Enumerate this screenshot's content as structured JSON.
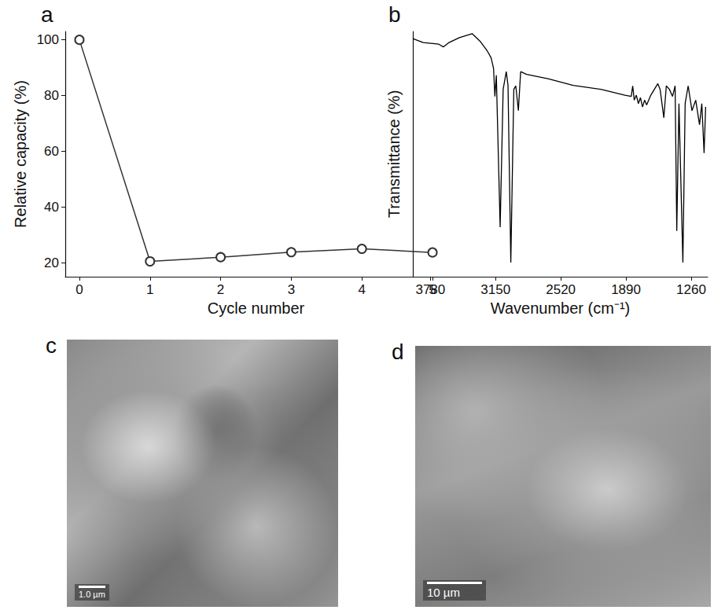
{
  "chart_data": [
    {
      "panel": "a",
      "type": "line",
      "x": [
        0,
        1,
        2,
        3,
        4,
        5
      ],
      "values": [
        100,
        20.5,
        22,
        23.8,
        25,
        23.7
      ],
      "xlim": [
        -0.2,
        5.2
      ],
      "xticks": [
        0,
        1,
        2,
        3,
        4,
        5
      ],
      "ylim": [
        15,
        103
      ],
      "yticks": [
        20,
        40,
        60,
        80,
        100
      ],
      "x_label": "Cycle number",
      "y_label": "Relative capacity (%)",
      "color": "#333333",
      "marker": "open_circle",
      "grid": false
    },
    {
      "panel": "b",
      "type": "line",
      "x": [
        3950,
        3850,
        3700,
        3655,
        3600,
        3500,
        3377,
        3300,
        3230,
        3194,
        3170,
        3157,
        3143,
        3106,
        3077,
        3047,
        3030,
        3003,
        2974,
        2955,
        2930,
        2908,
        2850,
        2644,
        2400,
        2132,
        1900,
        1839,
        1825,
        1810,
        1790,
        1770,
        1750,
        1730,
        1710,
        1690,
        1650,
        1582,
        1560,
        1524,
        1500,
        1470,
        1440,
        1415,
        1399,
        1378,
        1340,
        1318,
        1289,
        1252,
        1216,
        1179,
        1157,
        1135,
        1120
      ],
      "values": [
        97.1,
        95.5,
        94.8,
        93.7,
        95.5,
        97.5,
        99.1,
        96,
        92,
        89.3,
        85,
        73.5,
        82.1,
        20.2,
        76.4,
        83.6,
        78,
        5.8,
        76.4,
        77.8,
        67.7,
        83.6,
        82.5,
        80.7,
        78,
        76.4,
        74,
        73.5,
        77.8,
        72,
        74,
        70.6,
        73,
        69.2,
        72,
        70,
        74,
        78.7,
        76.4,
        64.8,
        77.8,
        76.4,
        73.5,
        77.8,
        18.7,
        70.6,
        5.8,
        70.6,
        77.8,
        67.7,
        72,
        62,
        70.6,
        50.4,
        69.2
      ],
      "xlim": [
        3950,
        1100
      ],
      "xticks": [
        3780,
        3150,
        2520,
        1890,
        1260
      ],
      "ylim": [
        0,
        100
      ],
      "x_label": "Wavenumber (cm⁻¹)",
      "y_label": "Transmittance (%)",
      "color": "#000000",
      "marker": "none",
      "tick_labels": "x",
      "grid": false
    }
  ],
  "images": [
    {
      "panel": "c",
      "scale_bar": "1.0 µm"
    },
    {
      "panel": "d",
      "scale_bar": "10 µm"
    }
  ]
}
